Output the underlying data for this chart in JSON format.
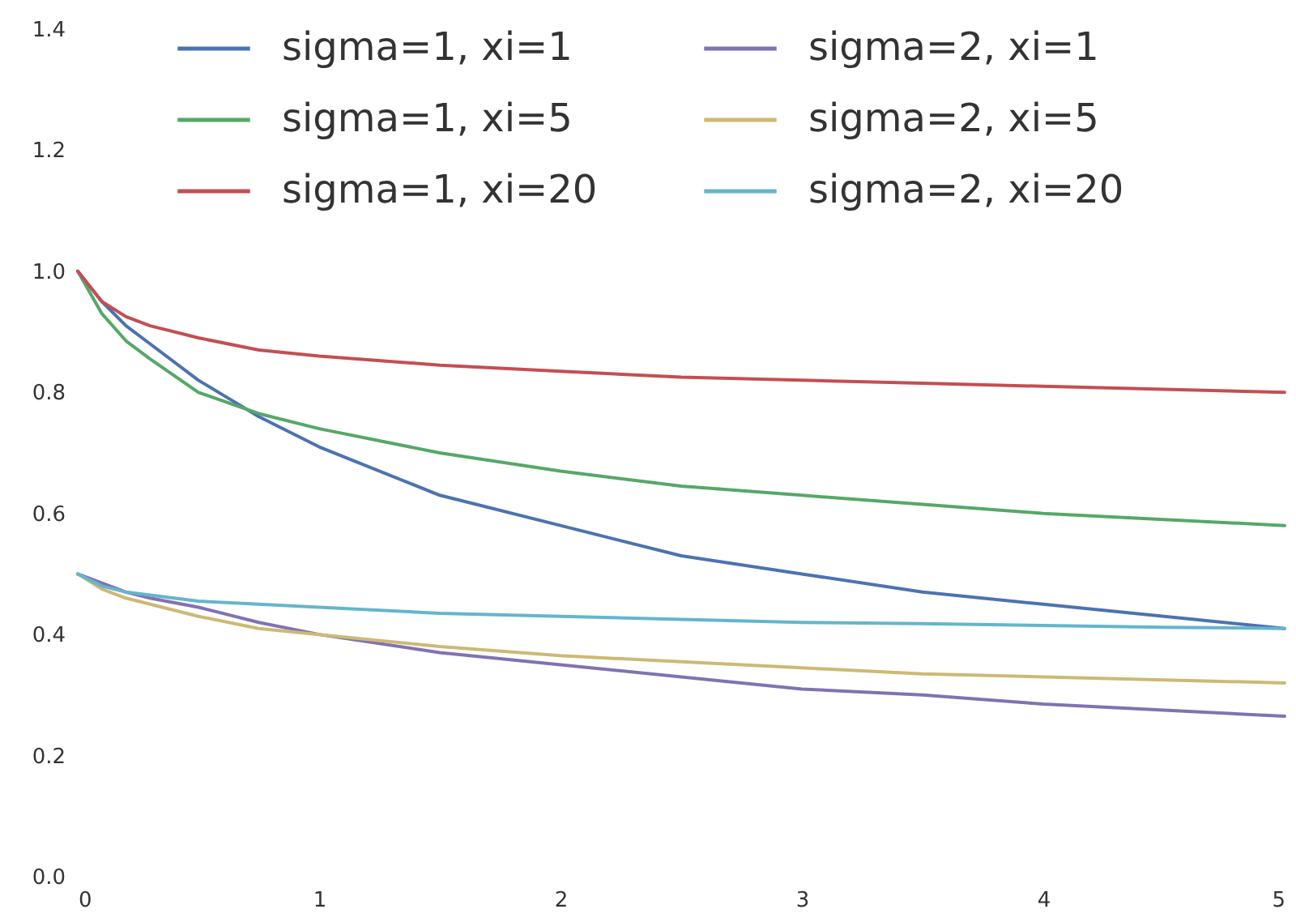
{
  "chart_data": {
    "type": "line",
    "x": [
      0,
      0.1,
      0.2,
      0.3,
      0.5,
      0.75,
      1,
      1.5,
      2,
      2.5,
      3,
      3.5,
      4,
      4.5,
      5
    ],
    "series": [
      {
        "name": "sigma=1, xi=1",
        "color": "#4c72b0",
        "values": [
          1,
          0.95,
          0.91,
          0.88,
          0.82,
          0.76,
          0.71,
          0.63,
          0.58,
          0.53,
          0.5,
          0.47,
          0.45,
          0.43,
          0.41
        ]
      },
      {
        "name": "sigma=1, xi=5",
        "color": "#55a868",
        "values": [
          1,
          0.93,
          0.885,
          0.855,
          0.8,
          0.765,
          0.74,
          0.7,
          0.67,
          0.645,
          0.63,
          0.615,
          0.6,
          0.59,
          0.58
        ]
      },
      {
        "name": "sigma=1, xi=20",
        "color": "#c44e52",
        "values": [
          1,
          0.95,
          0.925,
          0.91,
          0.89,
          0.87,
          0.86,
          0.845,
          0.835,
          0.825,
          0.82,
          0.815,
          0.81,
          0.805,
          0.8
        ]
      },
      {
        "name": "sigma=2, xi=1",
        "color": "#8172b2",
        "values": [
          0.5,
          0.485,
          0.47,
          0.46,
          0.445,
          0.42,
          0.4,
          0.37,
          0.35,
          0.33,
          0.31,
          0.3,
          0.285,
          0.275,
          0.265
        ]
      },
      {
        "name": "sigma=2, xi=5",
        "color": "#ccb974",
        "values": [
          0.5,
          0.475,
          0.46,
          0.45,
          0.43,
          0.41,
          0.4,
          0.38,
          0.365,
          0.355,
          0.345,
          0.335,
          0.33,
          0.325,
          0.32
        ]
      },
      {
        "name": "sigma=2, xi=20",
        "color": "#64b5cd",
        "values": [
          0.5,
          0.48,
          0.47,
          0.465,
          0.455,
          0.45,
          0.445,
          0.435,
          0.43,
          0.425,
          0.42,
          0.418,
          0.415,
          0.412,
          0.41
        ]
      }
    ],
    "xlim": [
      0,
      5
    ],
    "xticks": [
      0,
      1,
      2,
      3,
      4,
      5
    ],
    "ylim": [
      0,
      1.4
    ],
    "yticks": [
      {
        "value": 0,
        "label": "0.0"
      },
      0.2,
      0.4,
      0.6,
      0.8,
      {
        "value": 1,
        "label": "1.0"
      },
      1.2,
      1.4
    ],
    "grid": false,
    "legend": "top",
    "marker": "none",
    "line_style": "solid"
  }
}
